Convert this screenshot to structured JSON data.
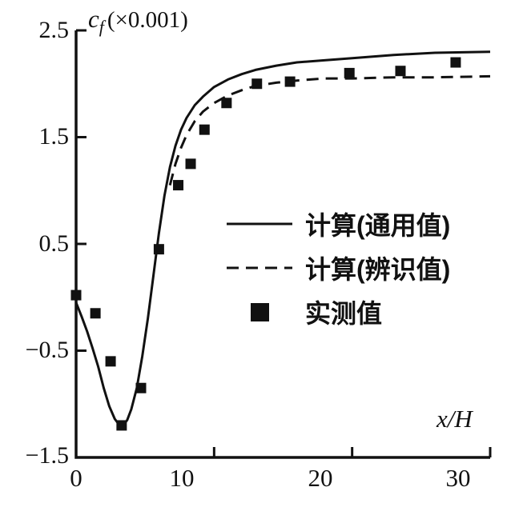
{
  "figure": {
    "background": "#ffffff",
    "ink_color": "#111111"
  },
  "chart_data": {
    "type": "line",
    "title": "",
    "ylabel": {
      "symbol": "c",
      "subscript": "f",
      "unit": "(×0.001)"
    },
    "xlabel": "x/H",
    "xlim": [
      0,
      30
    ],
    "ylim": [
      -1.5,
      2.5
    ],
    "xticks": [
      0,
      10,
      20,
      30
    ],
    "yticks": [
      2.5,
      1.5,
      0.5,
      -0.5,
      -1.5
    ],
    "xtick_labels": [
      "0",
      "10",
      "20",
      "30"
    ],
    "ytick_labels": [
      "2.5",
      "1.5",
      "0.5",
      "−0.5",
      "−1.5"
    ],
    "grid": false,
    "legend_position": "inside-right-middle",
    "series": [
      {
        "name": "计算(通用值)",
        "type": "line",
        "style": "solid",
        "points": [
          [
            0,
            -0.05
          ],
          [
            0.4,
            -0.18
          ],
          [
            0.8,
            -0.32
          ],
          [
            1.2,
            -0.48
          ],
          [
            1.6,
            -0.65
          ],
          [
            2.0,
            -0.85
          ],
          [
            2.4,
            -1.02
          ],
          [
            2.8,
            -1.14
          ],
          [
            3.1,
            -1.19
          ],
          [
            3.4,
            -1.2
          ],
          [
            3.7,
            -1.15
          ],
          [
            4.0,
            -1.05
          ],
          [
            4.4,
            -0.85
          ],
          [
            4.8,
            -0.55
          ],
          [
            5.2,
            -0.2
          ],
          [
            5.6,
            0.2
          ],
          [
            6.0,
            0.6
          ],
          [
            6.4,
            0.95
          ],
          [
            6.8,
            1.22
          ],
          [
            7.2,
            1.42
          ],
          [
            7.6,
            1.57
          ],
          [
            8.0,
            1.68
          ],
          [
            8.6,
            1.8
          ],
          [
            9.2,
            1.88
          ],
          [
            10,
            1.97
          ],
          [
            11,
            2.04
          ],
          [
            12,
            2.09
          ],
          [
            13,
            2.13
          ],
          [
            14.5,
            2.17
          ],
          [
            16,
            2.2
          ],
          [
            18,
            2.22
          ],
          [
            20,
            2.24
          ],
          [
            23,
            2.27
          ],
          [
            26,
            2.29
          ],
          [
            30,
            2.3
          ]
        ]
      },
      {
        "name": "计算(辨识值)",
        "type": "line",
        "style": "dashed",
        "points": [
          [
            6.8,
            1.05
          ],
          [
            7.2,
            1.25
          ],
          [
            7.6,
            1.4
          ],
          [
            8.0,
            1.52
          ],
          [
            8.6,
            1.65
          ],
          [
            9.2,
            1.74
          ],
          [
            10,
            1.82
          ],
          [
            11,
            1.89
          ],
          [
            12,
            1.94
          ],
          [
            13,
            1.98
          ],
          [
            14.5,
            2.01
          ],
          [
            16,
            2.03
          ],
          [
            18,
            2.05
          ],
          [
            20,
            2.05
          ],
          [
            23,
            2.06
          ],
          [
            26,
            2.06
          ],
          [
            30,
            2.07
          ]
        ]
      },
      {
        "name": "实测值",
        "type": "scatter",
        "style": "filled-square",
        "points": [
          [
            0,
            0.02
          ],
          [
            1.4,
            -0.15
          ],
          [
            2.5,
            -0.6
          ],
          [
            3.3,
            -1.2
          ],
          [
            4.7,
            -0.85
          ],
          [
            6.0,
            0.45
          ],
          [
            7.4,
            1.05
          ],
          [
            8.3,
            1.25
          ],
          [
            9.3,
            1.57
          ],
          [
            10.9,
            1.82
          ],
          [
            13.1,
            2.0
          ],
          [
            15.5,
            2.02
          ],
          [
            19.8,
            2.1
          ],
          [
            23.5,
            2.12
          ],
          [
            27.5,
            2.2
          ]
        ]
      }
    ]
  }
}
